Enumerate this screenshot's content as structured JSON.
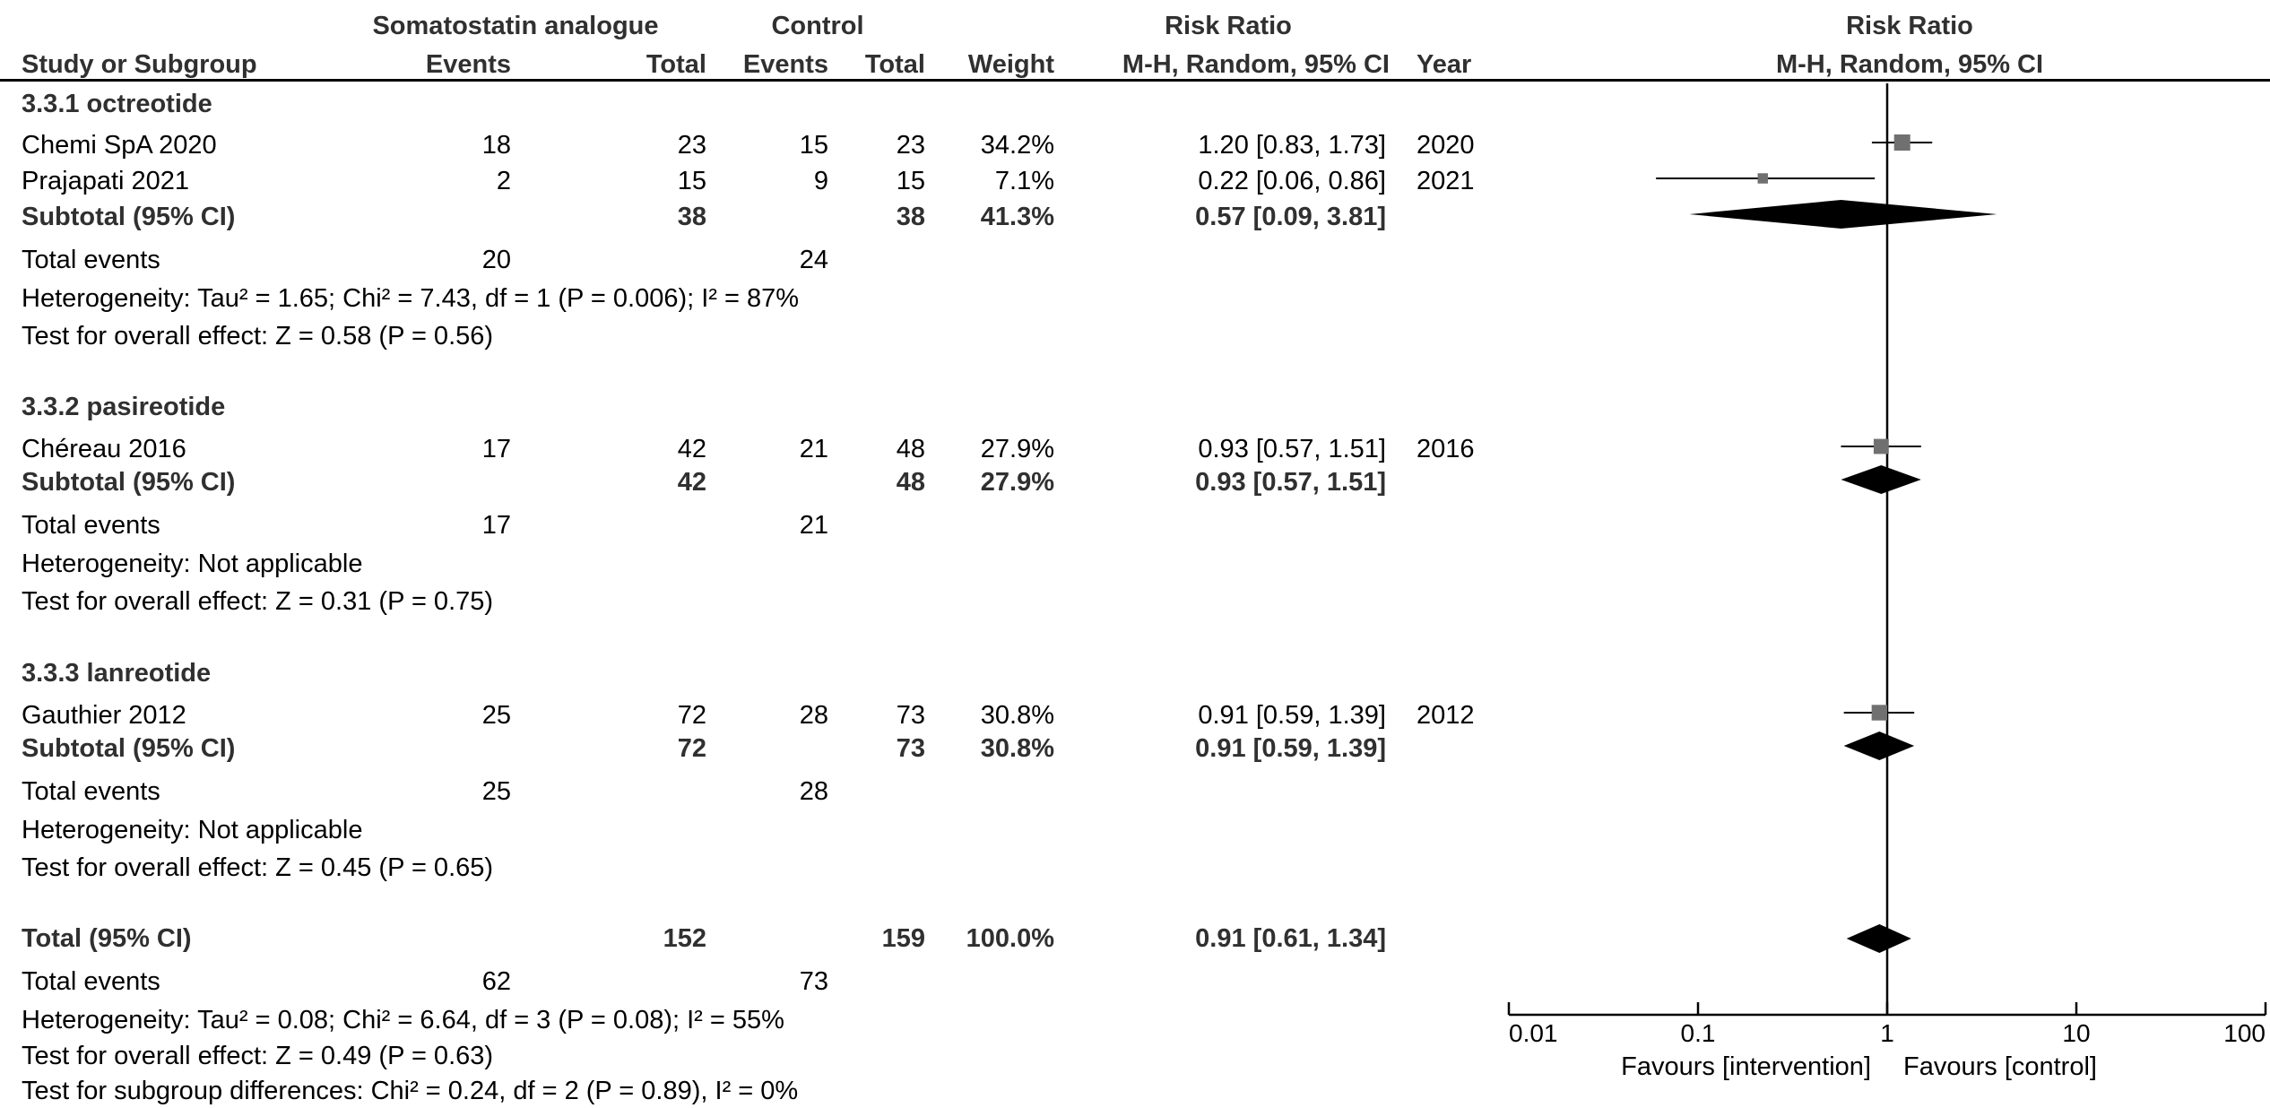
{
  "header": {
    "group1": "Somatostatin analogue",
    "group2": "Control",
    "effect_measure": "Risk Ratio",
    "plot_title": "Risk Ratio",
    "plot_method": "M-H, Random, 95% CI",
    "columns": {
      "study": "Study or Subgroup",
      "events1": "Events",
      "total1": "Total",
      "events2": "Events",
      "total2": "Total",
      "weight": "Weight",
      "ci": "M-H, Random, 95% CI",
      "year": "Year"
    }
  },
  "subgroups": [
    {
      "title": "3.3.1 octreotide",
      "studies": [
        {
          "name": "Chemi SpA 2020",
          "events1": "18",
          "total1": "23",
          "events2": "15",
          "total2": "23",
          "weight": "34.2%",
          "ci_text": "1.20 [0.83, 1.73]",
          "year": "2020"
        },
        {
          "name": "Prajapati 2021",
          "events1": "2",
          "total1": "15",
          "events2": "9",
          "total2": "15",
          "weight": "7.1%",
          "ci_text": "0.22 [0.06, 0.86]",
          "year": "2021"
        }
      ],
      "subtotal": {
        "label": "Subtotal (95% CI)",
        "total1": "38",
        "total2": "38",
        "weight": "41.3%",
        "ci_text": "0.57 [0.09, 3.81]"
      },
      "total_events": {
        "label": "Total events",
        "events1": "20",
        "events2": "24"
      },
      "heterogeneity": "Heterogeneity: Tau² = 1.65; Chi² = 7.43, df = 1 (P = 0.006); I² = 87%",
      "overall": "Test for overall effect: Z = 0.58 (P = 0.56)"
    },
    {
      "title": "3.3.2 pasireotide",
      "studies": [
        {
          "name": "Chéreau 2016",
          "events1": "17",
          "total1": "42",
          "events2": "21",
          "total2": "48",
          "weight": "27.9%",
          "ci_text": "0.93 [0.57, 1.51]",
          "year": "2016"
        }
      ],
      "subtotal": {
        "label": "Subtotal (95% CI)",
        "total1": "42",
        "total2": "48",
        "weight": "27.9%",
        "ci_text": "0.93 [0.57, 1.51]"
      },
      "total_events": {
        "label": "Total events",
        "events1": "17",
        "events2": "21"
      },
      "heterogeneity": "Heterogeneity: Not applicable",
      "overall": "Test for overall effect: Z = 0.31 (P = 0.75)"
    },
    {
      "title": "3.3.3 lanreotide",
      "studies": [
        {
          "name": "Gauthier 2012",
          "events1": "25",
          "total1": "72",
          "events2": "28",
          "total2": "73",
          "weight": "30.8%",
          "ci_text": "0.91 [0.59, 1.39]",
          "year": "2012"
        }
      ],
      "subtotal": {
        "label": "Subtotal (95% CI)",
        "total1": "72",
        "total2": "73",
        "weight": "30.8%",
        "ci_text": "0.91 [0.59, 1.39]"
      },
      "total_events": {
        "label": "Total events",
        "events1": "25",
        "events2": "28"
      },
      "heterogeneity": "Heterogeneity: Not applicable",
      "overall": "Test for overall effect: Z = 0.45 (P = 0.65)"
    }
  ],
  "overall": {
    "label": "Total (95% CI)",
    "total1": "152",
    "total2": "159",
    "weight": "100.0%",
    "ci_text": "0.91 [0.61, 1.34]",
    "total_events": {
      "label": "Total events",
      "events1": "62",
      "events2": "73"
    },
    "heterogeneity": "Heterogeneity: Tau² = 0.08; Chi² = 6.64, df = 3 (P = 0.08); I² = 55%",
    "overall_effect": "Test for overall effect: Z = 0.49 (P = 0.63)",
    "subgroup_diff": "Test for subgroup differences: Chi² = 0.24, df = 2 (P = 0.89), I² = 0%"
  },
  "axis": {
    "ticks": [
      "0.01",
      "0.1",
      "1",
      "10",
      "100"
    ],
    "favours_left": "Favours [intervention]",
    "favours_right": "Favours [control]"
  },
  "chart_data": {
    "type": "forest",
    "scale": "log",
    "xlim": [
      0.01,
      100
    ],
    "null_line": 1,
    "tick_values": [
      0.01,
      0.1,
      1,
      10,
      100
    ],
    "studies": [
      {
        "name": "Chemi SpA 2020",
        "estimate": 1.2,
        "lower": 0.83,
        "upper": 1.73,
        "weight": 34.2
      },
      {
        "name": "Prajapati 2021",
        "estimate": 0.22,
        "lower": 0.06,
        "upper": 0.86,
        "weight": 7.1
      },
      {
        "name": "Chéreau 2016",
        "estimate": 0.93,
        "lower": 0.57,
        "upper": 1.51,
        "weight": 27.9
      },
      {
        "name": "Gauthier 2012",
        "estimate": 0.91,
        "lower": 0.59,
        "upper": 1.39,
        "weight": 30.8
      }
    ],
    "pooled": [
      {
        "name": "3.3.1 octreotide Subtotal",
        "estimate": 0.57,
        "lower": 0.09,
        "upper": 3.81
      },
      {
        "name": "3.3.2 pasireotide Subtotal",
        "estimate": 0.93,
        "lower": 0.57,
        "upper": 1.51
      },
      {
        "name": "3.3.3 lanreotide Subtotal",
        "estimate": 0.91,
        "lower": 0.59,
        "upper": 1.39
      },
      {
        "name": "Total",
        "estimate": 0.91,
        "lower": 0.61,
        "upper": 1.34
      }
    ],
    "colors": {
      "study_marker": "#707070",
      "pooled_marker": "#000000",
      "line": "#000000"
    }
  }
}
